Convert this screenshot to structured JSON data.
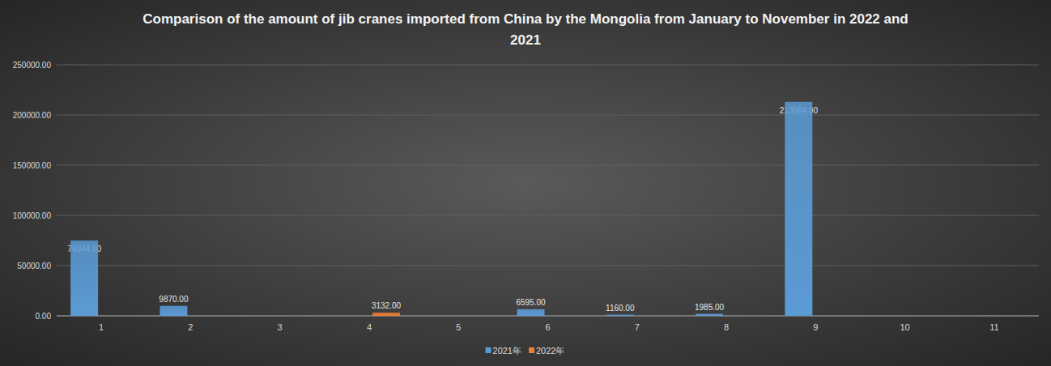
{
  "chart_data": {
    "type": "bar",
    "title": "Comparison of the amount of jib cranes imported from China by the Mongolia from January to November in 2022 and 2021",
    "categories": [
      "1",
      "2",
      "3",
      "4",
      "5",
      "6",
      "7",
      "8",
      "9",
      "10",
      "11"
    ],
    "series": [
      {
        "name": "2021年",
        "color": "#5b9bd5",
        "values": [
          74944,
          9870,
          null,
          null,
          null,
          6595,
          1160,
          1985,
          213064,
          null,
          null
        ],
        "value_labels": [
          "74944.00",
          "9870.00",
          null,
          null,
          null,
          "6595.00",
          "1160.00",
          "1985.00",
          "213064.00",
          null,
          null
        ]
      },
      {
        "name": "2022年",
        "color": "#ed7d31",
        "values": [
          null,
          null,
          null,
          3132,
          null,
          null,
          null,
          null,
          null,
          null,
          null
        ],
        "value_labels": [
          null,
          null,
          null,
          "3132.00",
          null,
          null,
          null,
          null,
          null,
          null,
          null
        ]
      }
    ],
    "ylim": [
      0,
      250000
    ],
    "yticks": [
      {
        "value": 0,
        "label": "0.00"
      },
      {
        "value": 50000,
        "label": "50000.00"
      },
      {
        "value": 100000,
        "label": "100000.00"
      },
      {
        "value": 150000,
        "label": "150000.00"
      },
      {
        "value": 200000,
        "label": "200000.00"
      },
      {
        "value": 250000,
        "label": "250000.00"
      }
    ],
    "grid": true,
    "legend": "bottom",
    "data_labels": true
  }
}
